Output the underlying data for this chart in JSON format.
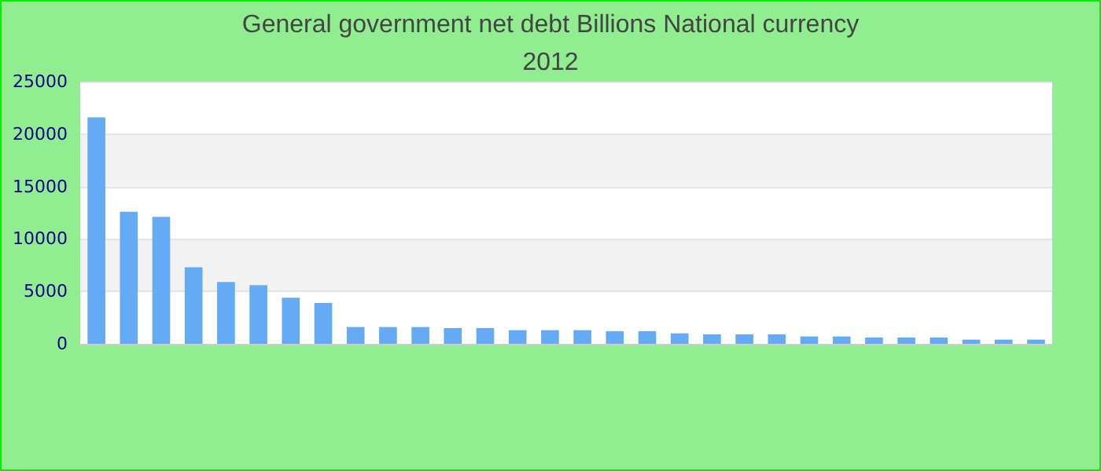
{
  "chart_data": {
    "type": "bar",
    "title": "General government net debt Billions National currency",
    "subtitle": "2012",
    "categories": [
      null,
      null,
      null,
      null,
      null,
      null,
      null,
      null,
      null,
      null,
      null,
      null,
      null,
      null,
      null,
      null,
      null,
      null,
      null,
      null,
      null,
      null,
      null,
      null,
      null,
      null,
      null,
      null,
      null,
      null
    ],
    "values": [
      21600,
      12600,
      12100,
      7300,
      5900,
      5600,
      4400,
      3900,
      1600,
      1600,
      1600,
      1500,
      1500,
      1300,
      1300,
      1300,
      1200,
      1200,
      1000,
      900,
      900,
      900,
      700,
      700,
      600,
      600,
      600,
      400,
      400,
      400
    ],
    "color": "#64aaf4",
    "ylim": [
      0,
      25000
    ],
    "yticks": [
      0,
      5000,
      10000,
      15000,
      20000,
      25000
    ],
    "grid": "y"
  }
}
